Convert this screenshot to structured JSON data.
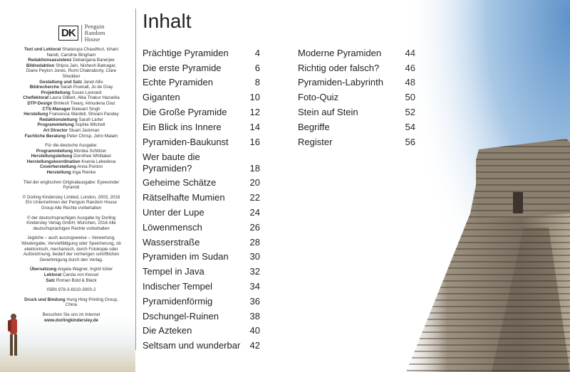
{
  "logo": {
    "mark": "DK",
    "publisher": [
      "Penguin",
      "Random",
      "House"
    ]
  },
  "credits": [
    {
      "role": "Text und Lektorat",
      "names": "Shatarupa Chaudhuri, Ishani Nandi, Caroline Bingham"
    },
    {
      "role": "Redaktionsassistenz",
      "names": "Debangana Banerjee"
    },
    {
      "role": "Bildredaktion",
      "names": "Shipra Jain, Nishesh Batnagar, Diane Peyton Jones, Romi Chakraborty, Clare Shedden"
    },
    {
      "role": "Gestaltung und Satz",
      "names": "Janet Allis"
    },
    {
      "role": "Bildrecherche",
      "names": "Sarah Pownall, Jo de Gray"
    },
    {
      "role": "Projektleitung",
      "names": "Susan Leonard"
    },
    {
      "role": "Cheflektorat",
      "names": "Laura Gilbert, Alka Thakur Hazarika"
    },
    {
      "role": "DTP-Design",
      "names": "Bimlesh Tiwary, Almudena Díaz"
    },
    {
      "role": "CTS-Manager",
      "names": "Balwant Singh"
    },
    {
      "role": "Herstellung",
      "names": "Francesca Wardell, Shivani Pandey"
    },
    {
      "role": "Redaktionsleitung",
      "names": "Sarah Larter"
    },
    {
      "role": "Programmleitung",
      "names": "Sophie Mitchell"
    },
    {
      "role": "Art Director",
      "names": "Stuart Jackman"
    },
    {
      "role": "Fachliche Beratung",
      "names": "Peter Chrisp, John Malam"
    }
  ],
  "german_edition": {
    "heading": "Für die deutsche Ausgabe:",
    "credits": [
      {
        "role": "Programmleitung",
        "names": "Monika Schlitzer"
      },
      {
        "role": "Herstellungsleitung",
        "names": "Dorothee Whittaker"
      },
      {
        "role": "Herstellungskoordination",
        "names": "Ksenia Lebedeva"
      },
      {
        "role": "Coverherstellung",
        "names": "Anna Ponton"
      },
      {
        "role": "Herstellung",
        "names": "Inga Reinke"
      }
    ]
  },
  "notices": [
    "Titel der englischen Originalausgabe: Eyewonder Pyramid",
    "© Dorling Kindersley Limited, London, 2003, 2016 Ein Unternehmen der Penguin Random House Group Alle Rechte vorbehalten",
    "© der deutschsprachigen Ausgabe by Dorling Kindersley Verlag GmbH, München, 2016 Alle deutschsprachigen Rechte vorbehalten",
    "Jegliche – auch auszugsweise – Verwertung, Wiedergabe, Vervielfältigung oder Speicherung, ob elektronisch, mechanisch, durch Fotokopie oder Aufzeichnung, bedarf der vorherigen schriftlichen Genehmigung durch den Verlag."
  ],
  "translation_credits": [
    {
      "role": "Übersetzung",
      "names": "Angela Wagner, Ingrid Ickler"
    },
    {
      "role": "Lektorat",
      "names": "Carola von Kessel"
    },
    {
      "role": "Satz",
      "names": "Roman Bold & Black"
    }
  ],
  "isbn": "ISBN 978-3-8310-3000-2",
  "printing": {
    "role": "Druck und Bindung",
    "names": "Hung Hing Printing Group, China"
  },
  "website": {
    "text": "Besuchen Sie uns im Internet",
    "url": "www.dorlingkindersley.de"
  },
  "title": "Inhalt",
  "toc": {
    "columns": [
      [
        {
          "title": "Prächtige Pyramiden",
          "page": 4
        },
        {
          "title": "Die erste Pyramide",
          "page": 6
        },
        {
          "title": "Echte Pyramiden",
          "page": 8
        },
        {
          "title": "Giganten",
          "page": 10
        },
        {
          "title": "Die Große Pyramide",
          "page": 12
        },
        {
          "title": "Ein Blick ins Innere",
          "page": 14
        },
        {
          "title": "Pyramiden-Baukunst",
          "page": 16
        },
        {
          "title": "Wer baute die Pyramiden?",
          "page": 18
        },
        {
          "title": "Geheime Schätze",
          "page": 20
        },
        {
          "title": "Rätselhafte Mumien",
          "page": 22
        },
        {
          "title": "Unter der Lupe",
          "page": 24
        },
        {
          "title": "Löwenmensch",
          "page": 26
        },
        {
          "title": "Wasserstraße",
          "page": 28
        },
        {
          "title": "Pyramiden im Sudan",
          "page": 30
        },
        {
          "title": "Tempel in Java",
          "page": 32
        },
        {
          "title": "Indischer Tempel",
          "page": 34
        },
        {
          "title": "Pyramidenförmig",
          "page": 36
        },
        {
          "title": "Dschungel-Ruinen",
          "page": 38
        },
        {
          "title": "Die Azteken",
          "page": 40
        },
        {
          "title": "Seltsam und wunderbar",
          "page": 42
        }
      ],
      [
        {
          "title": "Moderne Pyramiden",
          "page": 44
        },
        {
          "title": "Richtig oder falsch?",
          "page": 46
        },
        {
          "title": "Pyramiden-Labyrinth",
          "page": 48
        },
        {
          "title": "Foto-Quiz",
          "page": 50
        },
        {
          "title": "Stein auf Stein",
          "page": 52
        },
        {
          "title": "Begriffe",
          "page": 54
        },
        {
          "title": "Register",
          "page": 56
        }
      ]
    ]
  }
}
